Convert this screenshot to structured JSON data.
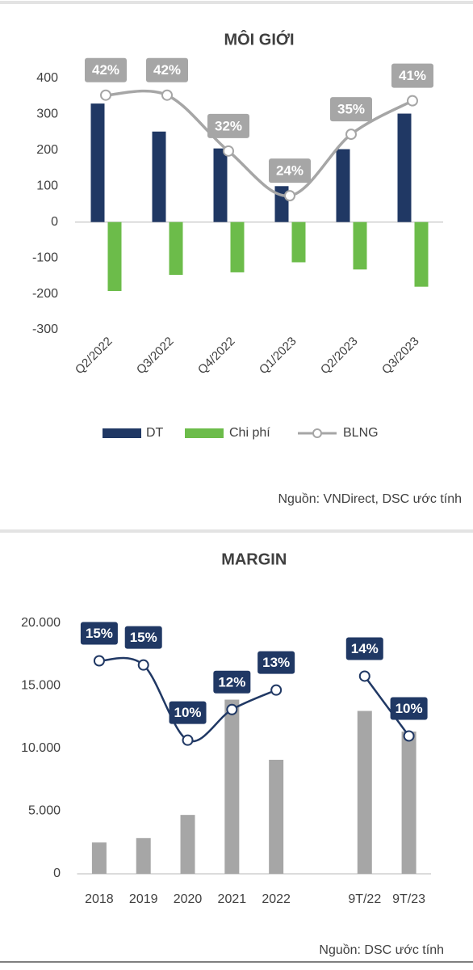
{
  "chart_data": [
    {
      "type": "bar",
      "title": "MÔI GIỚI",
      "categories": [
        "Q2/2022",
        "Q3/2022",
        "Q4/2022",
        "Q1/2023",
        "Q2/2023",
        "Q3/2023"
      ],
      "series": [
        {
          "name": "DT",
          "color": "#203864",
          "values": [
            330,
            252,
            205,
            100,
            203,
            302
          ]
        },
        {
          "name": "Chi phí",
          "color": "#6cbc4a",
          "values": [
            -192,
            -147,
            -140,
            -112,
            -132,
            -180
          ]
        },
        {
          "name": "BLNG",
          "type": "line",
          "axis": "y2",
          "color": "#a6a6a6",
          "values": [
            42,
            42,
            32,
            24,
            35,
            41
          ],
          "value_labels": [
            "42%",
            "42%",
            "32%",
            "24%",
            "35%",
            "41%"
          ]
        }
      ],
      "ylim": [
        -300,
        400
      ],
      "yticks": [
        400,
        300,
        200,
        100,
        0,
        -100,
        -200,
        -300
      ],
      "y2lim": [
        0,
        45
      ],
      "source": "Nguồn: VNDirect, DSC ước tính"
    },
    {
      "type": "bar",
      "title": "MARGIN",
      "categories": [
        "2018",
        "2019",
        "2020",
        "2021",
        "2022",
        null,
        "9T/22",
        "9T/23"
      ],
      "series": [
        {
          "color": "#a6a6a6",
          "values": [
            2500,
            2850,
            4700,
            13900,
            9100,
            null,
            13000,
            11350
          ]
        },
        {
          "type": "line",
          "axis": "y2",
          "color": "#203864",
          "values": [
            15.3,
            15,
            9.6,
            11.8,
            13.2,
            null,
            14.2,
            9.9
          ],
          "value_labels": [
            "15%",
            "15%",
            "10%",
            "12%",
            "13%",
            null,
            "14%",
            "10%"
          ]
        }
      ],
      "ylim": [
        0,
        20000
      ],
      "yticks": [
        {
          "value": 20000,
          "label": "20.000"
        },
        {
          "value": 15000,
          "label": "15.000"
        },
        {
          "value": 10000,
          "label": "10.000"
        },
        {
          "value": 5000,
          "label": "5.000"
        },
        0
      ],
      "y2lim": [
        0,
        18
      ],
      "source": "Nguồn: DSC ước tính"
    }
  ]
}
